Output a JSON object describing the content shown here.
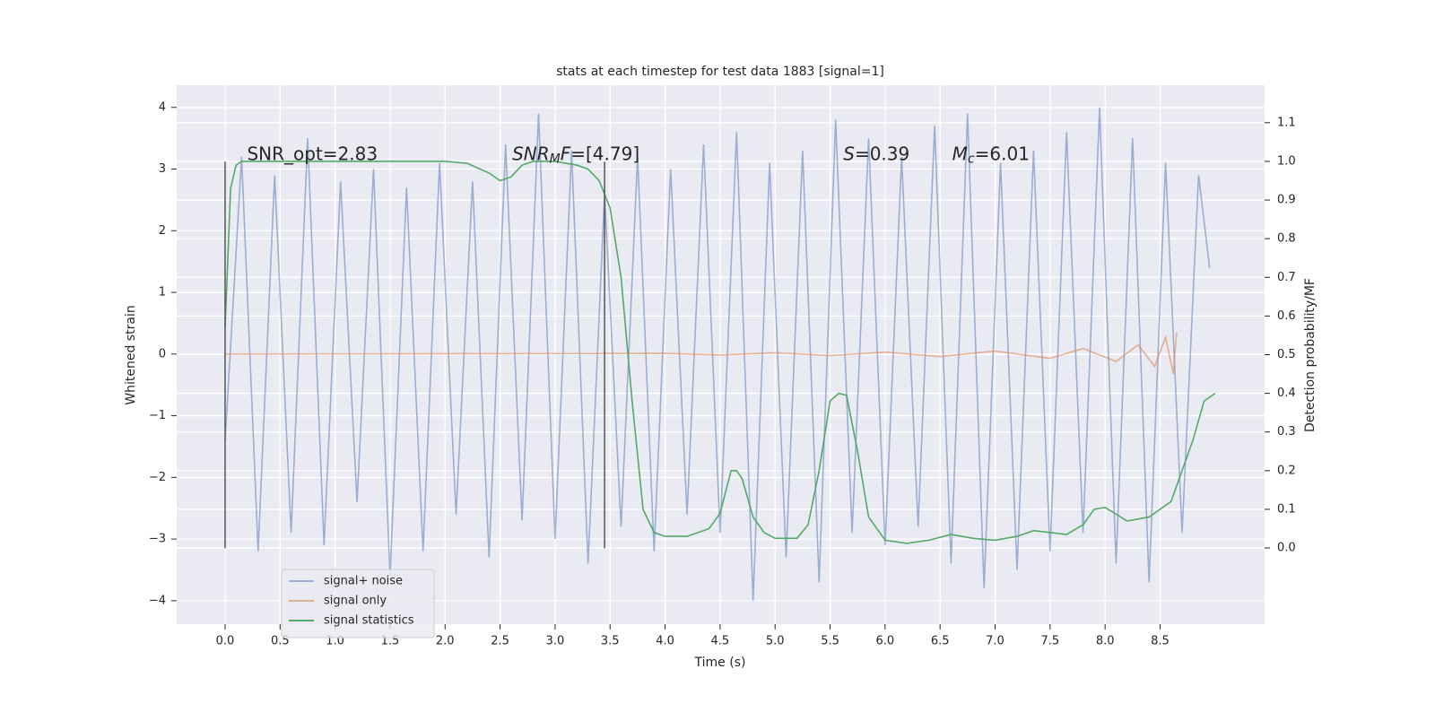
{
  "chart_data": {
    "type": "line",
    "title": "stats at each timestep for test data 1883 [signal=1]",
    "xlabel": "Time (s)",
    "ylabel": "Whitened strain",
    "y2label": "Detection probability/MF",
    "xlim": [
      -0.44,
      9.45
    ],
    "ylim": [
      -4.38,
      4.36
    ],
    "y2lim": [
      -0.197,
      1.197
    ],
    "xticks": [
      {
        "value": 0,
        "label": "0.0"
      },
      {
        "value": 0.5,
        "label": "0.5"
      },
      {
        "value": 1,
        "label": "1.0"
      },
      {
        "value": 1.5,
        "label": "1.5"
      },
      {
        "value": 2,
        "label": "2.0"
      },
      {
        "value": 2.5,
        "label": "2.5"
      },
      {
        "value": 3,
        "label": "3.0"
      },
      {
        "value": 3.5,
        "label": "3.5"
      },
      {
        "value": 4,
        "label": "4.0"
      },
      {
        "value": 4.5,
        "label": "4.5"
      },
      {
        "value": 5,
        "label": "5.0"
      },
      {
        "value": 5.5,
        "label": "5.5"
      },
      {
        "value": 6,
        "label": "6.0"
      },
      {
        "value": 6.5,
        "label": "6.5"
      },
      {
        "value": 7,
        "label": "7.0"
      },
      {
        "value": 7.5,
        "label": "7.5"
      },
      {
        "value": 8,
        "label": "8.0"
      },
      {
        "value": 8.5,
        "label": "8.5"
      }
    ],
    "yticks": [
      {
        "value": -4,
        "label": "−4"
      },
      {
        "value": -3,
        "label": "−3"
      },
      {
        "value": -2,
        "label": "−2"
      },
      {
        "value": -1,
        "label": "−1"
      },
      0,
      1,
      2,
      3,
      4
    ],
    "y2ticks": [
      {
        "value": 0,
        "label": "0.0"
      },
      0.1,
      0.2,
      0.3,
      0.4,
      0.5,
      0.6,
      0.7,
      0.8,
      0.9,
      {
        "value": 1,
        "label": "1.0"
      },
      1.1
    ],
    "grid": true,
    "legend": "lower left",
    "series": [
      {
        "name": "signal+ noise",
        "color": "#4c72b0",
        "opacity": 0.5,
        "x": [
          0,
          0.15,
          0.3,
          0.45,
          0.6,
          0.75,
          0.9,
          1.05,
          1.2,
          1.35,
          1.5,
          1.65,
          1.8,
          1.95,
          2.1,
          2.25,
          2.4,
          2.55,
          2.7,
          2.85,
          3.0,
          3.15,
          3.3,
          3.45,
          3.6,
          3.75,
          3.9,
          4.05,
          4.2,
          4.35,
          4.5,
          4.65,
          4.8,
          4.95,
          5.1,
          5.25,
          5.4,
          5.55,
          5.7,
          5.85,
          6.0,
          6.15,
          6.3,
          6.45,
          6.6,
          6.75,
          6.9,
          7.05,
          7.2,
          7.35,
          7.5,
          7.65,
          7.8,
          7.95,
          8.1,
          8.25,
          8.4,
          8.55,
          8.7,
          8.85,
          8.95
        ],
        "values": [
          -1.4,
          3.2,
          -3.2,
          2.9,
          -2.9,
          3.5,
          -3.1,
          2.8,
          -2.4,
          3.0,
          -3.6,
          2.7,
          -3.2,
          3.1,
          -2.6,
          2.8,
          -3.3,
          3.4,
          -2.7,
          3.9,
          -3.0,
          3.3,
          -3.4,
          2.6,
          -2.8,
          3.2,
          -3.2,
          3.0,
          -2.6,
          3.4,
          -2.9,
          3.6,
          -4.0,
          3.1,
          -3.3,
          3.3,
          -3.7,
          3.8,
          -2.9,
          3.5,
          -3.1,
          3.2,
          -2.8,
          3.7,
          -3.4,
          3.9,
          -3.8,
          3.1,
          -3.5,
          3.3,
          -3.2,
          3.6,
          -2.9,
          4.0,
          -3.4,
          3.5,
          -3.7,
          3.1,
          -2.9,
          2.9,
          1.4
        ]
      },
      {
        "name": "signal only",
        "color": "#dd8452",
        "opacity": 0.6,
        "x": [
          0,
          4.0,
          4.5,
          5.0,
          5.5,
          6.0,
          6.5,
          7.0,
          7.5,
          7.8,
          8.1,
          8.3,
          8.45,
          8.55,
          8.62,
          8.65
        ],
        "values": [
          0,
          0.01,
          -0.015,
          0.02,
          -0.025,
          0.03,
          -0.04,
          0.05,
          -0.07,
          0.09,
          -0.12,
          0.15,
          -0.2,
          0.27,
          -0.32,
          0.35
        ]
      },
      {
        "name": "signal statistics",
        "color": "#55a868",
        "opacity": 1,
        "axis": "y2",
        "x": [
          0,
          0.05,
          0.1,
          0.15,
          0.3,
          0.5,
          1.0,
          1.5,
          2.0,
          2.2,
          2.4,
          2.5,
          2.6,
          2.7,
          2.8,
          3.0,
          3.2,
          3.3,
          3.4,
          3.5,
          3.6,
          3.7,
          3.8,
          3.9,
          4.0,
          4.2,
          4.4,
          4.5,
          4.6,
          4.65,
          4.7,
          4.8,
          4.9,
          5.0,
          5.2,
          5.3,
          5.4,
          5.5,
          5.58,
          5.65,
          5.75,
          5.85,
          6.0,
          6.2,
          6.4,
          6.6,
          6.8,
          7.0,
          7.2,
          7.35,
          7.5,
          7.65,
          7.8,
          7.9,
          8.0,
          8.2,
          8.4,
          8.6,
          8.8,
          8.9,
          9.0
        ],
        "values": [
          0.57,
          0.93,
          0.99,
          1.0,
          1.0,
          1.0,
          1.0,
          1.0,
          1.0,
          0.995,
          0.97,
          0.95,
          0.96,
          0.99,
          1.0,
          1.0,
          0.99,
          0.98,
          0.95,
          0.88,
          0.7,
          0.38,
          0.1,
          0.04,
          0.03,
          0.03,
          0.05,
          0.09,
          0.2,
          0.2,
          0.18,
          0.08,
          0.04,
          0.025,
          0.025,
          0.06,
          0.2,
          0.38,
          0.4,
          0.395,
          0.25,
          0.08,
          0.02,
          0.012,
          0.02,
          0.035,
          0.025,
          0.02,
          0.03,
          0.045,
          0.04,
          0.035,
          0.06,
          0.1,
          0.105,
          0.07,
          0.08,
          0.12,
          0.28,
          0.38,
          0.4
        ]
      }
    ],
    "vlines": {
      "x": [
        0,
        3.45
      ],
      "ymin": -3.15,
      "ymax": 3.12,
      "color": "#555555"
    },
    "annotations": [
      {
        "x": 0.2,
        "y": 3.23,
        "parts": [
          {
            "text": "SNR_opt=2.83"
          }
        ]
      },
      {
        "x": 2.61,
        "y": 3.23,
        "parts": [
          {
            "text": "SNR",
            "italic": true
          },
          {
            "text": "M",
            "italic": true,
            "sub": true
          },
          {
            "text": "F",
            "italic": true
          },
          {
            "text": "=[4.79]"
          }
        ]
      },
      {
        "x": 5.62,
        "y": 3.23,
        "parts": [
          {
            "text": "S",
            "italic": true
          },
          {
            "text": "=0.39"
          }
        ]
      },
      {
        "x": 6.61,
        "y": 3.23,
        "parts": [
          {
            "text": "M",
            "italic": true
          },
          {
            "text": "c",
            "italic": true,
            "sub": true
          },
          {
            "text": "=6.01"
          }
        ]
      }
    ]
  }
}
